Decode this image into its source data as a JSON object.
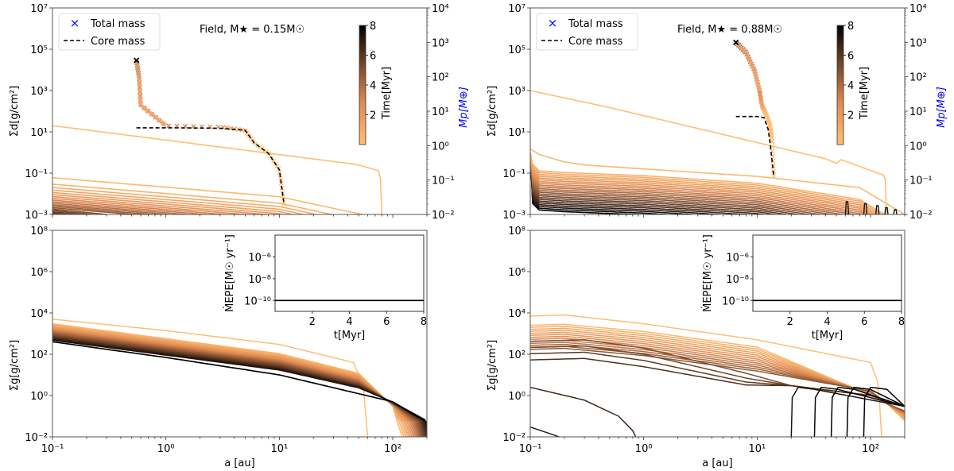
{
  "figure": {
    "colormap": {
      "low": "#ffbf73",
      "mid": "#e08a52",
      "high": "#000000"
    },
    "legend": {
      "total_mass": "Total mass",
      "core_mass": "Core mass",
      "total_mass_color": "#0000ff"
    },
    "xlabel": "a [au]"
  },
  "chart_data": [
    {
      "id": "left-top",
      "type": "line",
      "title": "Field, M★ = 0.15M☉",
      "title_main": "Field, ",
      "title_math": "M★ = 0.15M☉",
      "xlabel": "",
      "ylabel": "Σd[g/cm²]",
      "ylabel_right": "Mp[M⊕]",
      "xscale": "log",
      "yscale": "log",
      "xlim": [
        0.1,
        200
      ],
      "ylim": [
        0.001,
        10000000
      ],
      "ylim_right": [
        0.01,
        10000
      ],
      "yticks": [
        "10⁻³",
        "10⁻¹",
        "10¹",
        "10³",
        "10⁵",
        "10⁷"
      ],
      "yticks_right": [
        "10⁻²",
        "10⁻¹",
        "10⁰",
        "10¹",
        "10²",
        "10³",
        "10⁴"
      ],
      "colorbar": {
        "label": "Time[Myr]",
        "ticks": [
          "2",
          "4",
          "6",
          "8"
        ],
        "range": [
          0,
          8
        ]
      },
      "legend_position": "top-left",
      "dust_profiles": {
        "description": "Dust surface density snapshots colored by time (0-8 Myr)",
        "first": {
          "x": [
            0.1,
            40,
            50,
            75,
            78,
            80
          ],
          "y": [
            20,
            0.3,
            0.25,
            0.13,
            0.05,
            0.001
          ]
        },
        "second": {
          "x": [
            0.1,
            1,
            10,
            60
          ],
          "y": [
            0.06,
            0.02,
            0.008,
            0.001
          ]
        },
        "last": {
          "x": [
            0.1,
            0.6
          ],
          "y": [
            0.003,
            0.001
          ]
        },
        "count": 25
      },
      "planet_track": {
        "total_mass": {
          "a": [
            0.55,
            0.58,
            0.6,
            1.0,
            3.0,
            5.0,
            6.0,
            8.0,
            10.0,
            11.0
          ],
          "mass": [
            300,
            100,
            15,
            3.8,
            3.5,
            2.8,
            1.2,
            0.6,
            0.2,
            0.02
          ]
        },
        "core_mass": {
          "a": [
            0.55,
            1.0,
            3.0,
            5.0,
            6.0,
            8.0,
            10.0,
            11.0
          ],
          "mass": [
            3.3,
            3.3,
            3.2,
            2.8,
            1.2,
            0.6,
            0.2,
            0.02
          ]
        }
      }
    },
    {
      "id": "left-bottom",
      "type": "line",
      "xlabel": "a [au]",
      "ylabel": "Σg[g/cm²]",
      "xscale": "log",
      "yscale": "log",
      "xlim": [
        0.1,
        200
      ],
      "ylim": [
        0.01,
        100000000
      ],
      "xticks": [
        "10⁻¹",
        "10⁰",
        "10¹",
        "10²"
      ],
      "yticks": [
        "10⁻²",
        "10⁰",
        "10²",
        "10⁴",
        "10⁶",
        "10⁸"
      ],
      "gas_profiles": {
        "first": {
          "x": [
            0.1,
            1,
            10,
            45,
            55,
            60
          ],
          "y": [
            5000,
            1400,
            300,
            40,
            3,
            0.01
          ]
        },
        "last": {
          "x": [
            0.1,
            1,
            10,
            100,
            200
          ],
          "y": [
            400,
            70,
            10,
            0.5,
            0.05
          ]
        },
        "count": 25
      },
      "inset": {
        "xlabel": "t[Myr]",
        "ylabel": "ṀEPE[M☉ yr⁻¹]",
        "xlim": [
          0,
          8
        ],
        "xticks": [
          "2",
          "4",
          "6",
          "8"
        ],
        "yticks": [
          "10⁻⁶",
          "10⁻⁸",
          "10⁻¹⁰"
        ],
        "ylim": [
          1e-11,
          0.0001
        ],
        "series": {
          "t": [
            0,
            8
          ],
          "value": [
            1e-10,
            1e-10
          ]
        }
      }
    },
    {
      "id": "right-top",
      "type": "line",
      "title": "Field, M★ = 0.88M☉",
      "title_main": "Field, ",
      "title_math": "M★ = 0.88M☉",
      "ylabel": "Σd[g/cm²]",
      "ylabel_right": "Mp[M⊕]",
      "xscale": "log",
      "yscale": "log",
      "xlim": [
        0.1,
        200
      ],
      "ylim": [
        0.001,
        10000000
      ],
      "ylim_right": [
        0.01,
        10000
      ],
      "yticks": [
        "10⁻³",
        "10⁻¹",
        "10¹",
        "10³",
        "10⁵",
        "10⁷"
      ],
      "yticks_right": [
        "10⁻²",
        "10⁻¹",
        "10⁰",
        "10¹",
        "10²",
        "10³",
        "10⁴"
      ],
      "colorbar": {
        "label": "Time[Myr]",
        "ticks": [
          "2",
          "4",
          "6",
          "8"
        ],
        "range": [
          0,
          8
        ]
      },
      "legend_position": "top-left",
      "planet_track": {
        "total_mass": {
          "a": [
            6.5,
            8.0,
            9.5,
            10.5,
            11.0,
            12.0,
            13.0,
            13.5,
            14.0
          ],
          "mass": [
            1000,
            500,
            150,
            40,
            15,
            8,
            4,
            1.5,
            0.13
          ]
        },
        "core_mass": {
          "a": [
            6.5,
            10.0,
            11.5,
            12.5,
            13.0,
            13.5,
            14.0
          ],
          "mass": [
            7,
            7,
            6.5,
            3,
            1.2,
            0.4,
            0.13
          ]
        }
      }
    },
    {
      "id": "right-bottom",
      "type": "line",
      "xlabel": "a [au]",
      "ylabel": "Σg[g/cm²]",
      "xscale": "log",
      "yscale": "log",
      "xlim": [
        0.1,
        200
      ],
      "ylim": [
        0.01,
        100000000
      ],
      "xticks": [
        "10⁻¹",
        "10⁰",
        "10¹",
        "10²"
      ],
      "yticks": [
        "10⁻²",
        "10⁰",
        "10²",
        "10⁴",
        "10⁶",
        "10⁸"
      ],
      "gap_edges_au": [
        20,
        32,
        45,
        62,
        87,
        115
      ],
      "inset": {
        "xlabel": "t[Myr]",
        "ylabel": "ṀEPE[M☉ yr⁻¹]",
        "xlim": [
          0,
          8
        ],
        "xticks": [
          "2",
          "4",
          "6",
          "8"
        ],
        "yticks": [
          "10⁻⁶",
          "10⁻⁸",
          "10⁻¹⁰"
        ],
        "ylim": [
          1e-11,
          0.0001
        ],
        "series": {
          "t": [
            0,
            8
          ],
          "value": [
            1e-10,
            1e-10
          ]
        }
      }
    }
  ]
}
